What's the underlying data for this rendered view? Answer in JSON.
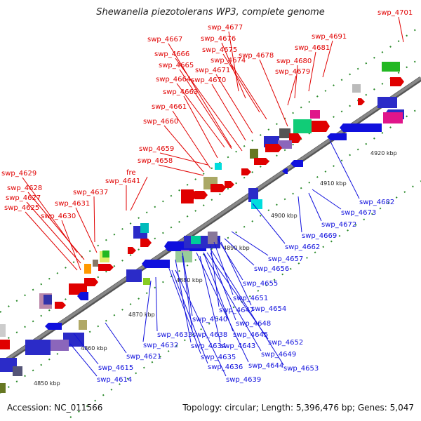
{
  "title": "Shewanella piezotolerans WP3, complete genome",
  "footer": {
    "accession": "Accession: NC_011566",
    "summary": "Topology: circular; Length: 5,396,476 bp; Genes: 5,047"
  },
  "colors": {
    "forward_strand": "#e00000",
    "reverse_strand": "#1010dd",
    "backbone": "#888888",
    "tick_dots": "#2a8a2a"
  },
  "kbp_ticks": [
    "4850 kbp",
    "4860 kbp",
    "4870 kbp",
    "4880 kbp",
    "4890 kbp",
    "4900 kbp",
    "4910 kbp",
    "4920 kbp"
  ],
  "forward_genes": [
    "swp_4701",
    "swp_4677",
    "swp_4676",
    "swp_4667",
    "swp_4675",
    "swp_4678",
    "swp_4691",
    "swp_4666",
    "swp_4674",
    "swp_4681",
    "swp_4665",
    "swp_4671",
    "swp_4680",
    "swp_4679",
    "swp_4664",
    "swp_4670",
    "swp_4663",
    "swp_4661",
    "swp_4660",
    "swp_4659",
    "swp_4658",
    "fre",
    "swp_4629",
    "swp_4641",
    "swp_4628",
    "swp_4637",
    "swp_4627",
    "swp_4631",
    "swp_4625",
    "swp_4630"
  ],
  "reverse_genes": [
    "swp_4682",
    "swp_4673",
    "swp_4672",
    "swp_4669",
    "swp_4662",
    "swp_4657",
    "swp_4656",
    "swp_4655",
    "swp_4651",
    "swp_4654",
    "swp_4647",
    "swp_4640",
    "swp_4648",
    "swp_4645",
    "swp_4638",
    "swp_4643",
    "swp_4652",
    "swp_4634",
    "swp_4633",
    "swp_4632",
    "swp_4621",
    "swp_4649",
    "swp_4644",
    "swp_4635",
    "swp_4636",
    "swp_4653",
    "swp_4615",
    "swp_4639",
    "swp_4614"
  ]
}
